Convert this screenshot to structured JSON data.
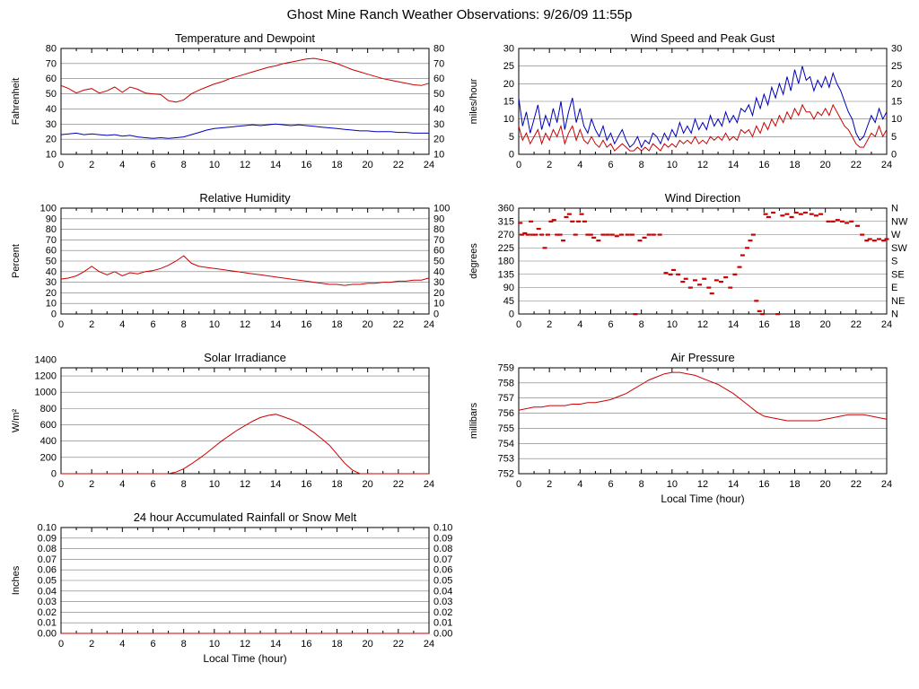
{
  "page": {
    "title": "Ghost Mine Ranch Weather Observations: 9/26/09 11:55p"
  },
  "colors": {
    "red": "#cc0000",
    "blue": "#0000bb",
    "grid": "#777777",
    "frame": "#000000"
  },
  "chart_data": [
    {
      "id": "temperature-dewpoint",
      "type": "line",
      "title": "Temperature and Dewpoint",
      "ylabel": "Fahrenheit",
      "xlabel": "",
      "xlim": [
        0,
        24
      ],
      "xtick_step": 2,
      "ylim": [
        10,
        80
      ],
      "ytick_step": 10,
      "y_decimals": 0,
      "right_labels": "mirror",
      "series": [
        {
          "name": "Temperature",
          "color": "#cc0000",
          "x_start": 0,
          "x_step": 0.5,
          "y": [
            55.5,
            53.5,
            50.5,
            52.5,
            53.5,
            50.5,
            52,
            54.5,
            51,
            54.5,
            53,
            50.5,
            50,
            49.5,
            45.5,
            44.5,
            46,
            50,
            52.5,
            54.5,
            56.5,
            58,
            60,
            61.5,
            63,
            64.5,
            66,
            67.5,
            68.5,
            70,
            71,
            72,
            73,
            73.5,
            72.5,
            71.5,
            70,
            68,
            66,
            64.5,
            63,
            61.5,
            60,
            59,
            58,
            57,
            56,
            55.5,
            57
          ]
        },
        {
          "name": "Dewpoint",
          "color": "#0000bb",
          "x_start": 0,
          "x_step": 0.5,
          "y": [
            23,
            23.5,
            24,
            23,
            23.5,
            23,
            22.5,
            23,
            22,
            22.5,
            21.5,
            21,
            20.5,
            21,
            20.5,
            21,
            21.5,
            23,
            24.5,
            26,
            27,
            27.5,
            28,
            28.5,
            29,
            29.5,
            29,
            29.5,
            30,
            29.5,
            29,
            29.5,
            29,
            28.5,
            28,
            27.5,
            27,
            26.5,
            26,
            25.5,
            25.5,
            25,
            25,
            25,
            24.5,
            24.5,
            24,
            24,
            24
          ]
        }
      ]
    },
    {
      "id": "wind-speed-gust",
      "type": "line",
      "title": "Wind Speed and Peak Gust",
      "ylabel": "miles/hour",
      "xlabel": "",
      "xlim": [
        0,
        24
      ],
      "xtick_step": 2,
      "ylim": [
        0,
        30
      ],
      "ytick_step": 5,
      "y_decimals": 0,
      "right_labels": "mirror",
      "series": [
        {
          "name": "Wind Speed",
          "color": "#cc0000",
          "x_start": 0,
          "x_step": 0.25,
          "y": [
            8,
            4,
            6,
            3,
            5,
            7,
            3,
            6,
            4,
            7,
            5,
            8,
            3,
            6,
            8,
            4,
            7,
            4,
            3,
            5,
            3,
            2,
            4,
            2,
            3,
            1,
            2,
            3,
            2,
            1,
            1,
            2,
            1,
            2,
            1,
            3,
            2,
            1,
            3,
            2,
            3,
            2,
            4,
            3,
            4,
            3,
            5,
            3,
            4,
            3,
            5,
            4,
            5,
            4,
            6,
            4,
            5,
            4,
            7,
            6,
            7,
            5,
            8,
            6,
            9,
            7,
            10,
            8,
            11,
            9,
            12,
            10,
            13,
            11,
            14,
            12,
            12,
            10,
            12,
            11,
            13,
            11,
            14,
            12,
            10,
            8,
            7,
            5,
            3,
            2,
            2,
            4,
            6,
            5,
            8,
            5,
            7
          ]
        },
        {
          "name": "Peak Gust",
          "color": "#0000bb",
          "x_start": 0,
          "x_step": 0.25,
          "y": [
            16,
            8,
            12,
            6,
            10,
            14,
            7,
            11,
            8,
            13,
            9,
            15,
            7,
            12,
            16,
            9,
            13,
            8,
            6,
            10,
            7,
            5,
            8,
            4,
            6,
            3,
            5,
            7,
            4,
            2,
            3,
            5,
            2,
            4,
            3,
            6,
            5,
            3,
            6,
            4,
            7,
            5,
            9,
            6,
            8,
            6,
            10,
            7,
            9,
            7,
            11,
            8,
            10,
            8,
            12,
            9,
            11,
            9,
            13,
            12,
            14,
            11,
            16,
            13,
            17,
            14,
            19,
            16,
            20,
            17,
            22,
            18,
            24,
            20,
            25,
            21,
            22,
            18,
            21,
            19,
            22,
            19,
            23,
            20,
            18,
            15,
            12,
            10,
            6,
            4,
            5,
            8,
            11,
            9,
            13,
            10,
            12
          ]
        }
      ]
    },
    {
      "id": "relative-humidity",
      "type": "line",
      "title": "Relative Humidity",
      "ylabel": "Percent",
      "xlabel": "",
      "xlim": [
        0,
        24
      ],
      "xtick_step": 2,
      "ylim": [
        0,
        100
      ],
      "ytick_step": 10,
      "y_decimals": 0,
      "right_labels": "mirror",
      "series": [
        {
          "name": "Relative Humidity",
          "color": "#cc0000",
          "x_start": 0,
          "x_step": 0.5,
          "y": [
            33,
            34,
            36,
            40,
            45,
            40,
            37,
            40,
            36,
            39,
            38,
            40,
            41,
            43,
            46,
            50,
            55,
            48,
            45,
            44,
            43,
            42,
            41,
            40,
            39,
            38,
            37,
            36,
            35,
            34,
            33,
            32,
            31,
            30,
            29,
            28,
            28,
            27,
            28,
            28,
            29,
            29,
            30,
            30,
            31,
            31,
            32,
            32,
            34
          ]
        }
      ]
    },
    {
      "id": "wind-direction",
      "type": "scatter",
      "title": "Wind Direction",
      "ylabel": "degrees",
      "xlabel": "",
      "xlim": [
        0,
        24
      ],
      "xtick_step": 2,
      "ylim": [
        0,
        360
      ],
      "ytick_step": 45,
      "y_decimals": 0,
      "right_labels": [
        "N",
        "NE",
        "E",
        "SE",
        "S",
        "SW",
        "W",
        "NW",
        "N"
      ],
      "series": [
        {
          "name": "Wind Direction",
          "color": "#cc0000",
          "points": [
            [
              0.1,
              310
            ],
            [
              0.2,
              270
            ],
            [
              0.4,
              275
            ],
            [
              0.6,
              270
            ],
            [
              0.8,
              315
            ],
            [
              0.9,
              270
            ],
            [
              1.1,
              270
            ],
            [
              1.3,
              290
            ],
            [
              1.5,
              270
            ],
            [
              1.7,
              225
            ],
            [
              1.9,
              270
            ],
            [
              2.1,
              315
            ],
            [
              2.3,
              320
            ],
            [
              2.5,
              270
            ],
            [
              2.7,
              270
            ],
            [
              2.9,
              250
            ],
            [
              3.1,
              330
            ],
            [
              3.3,
              340
            ],
            [
              3.5,
              315
            ],
            [
              3.7,
              270
            ],
            [
              3.9,
              315
            ],
            [
              4.1,
              340
            ],
            [
              4.3,
              315
            ],
            [
              4.5,
              270
            ],
            [
              4.7,
              270
            ],
            [
              4.9,
              260
            ],
            [
              5.2,
              250
            ],
            [
              5.5,
              270
            ],
            [
              5.8,
              270
            ],
            [
              6.1,
              270
            ],
            [
              6.4,
              265
            ],
            [
              6.7,
              270
            ],
            [
              7.1,
              270
            ],
            [
              7.4,
              270
            ],
            [
              7.6,
              0
            ],
            [
              7.9,
              250
            ],
            [
              8.2,
              260
            ],
            [
              8.5,
              270
            ],
            [
              8.8,
              270
            ],
            [
              9.2,
              270
            ],
            [
              9.6,
              140
            ],
            [
              9.9,
              135
            ],
            [
              10.1,
              150
            ],
            [
              10.4,
              135
            ],
            [
              10.7,
              110
            ],
            [
              10.9,
              120
            ],
            [
              11.2,
              90
            ],
            [
              11.5,
              115
            ],
            [
              11.8,
              100
            ],
            [
              12.1,
              120
            ],
            [
              12.4,
              90
            ],
            [
              12.6,
              70
            ],
            [
              12.9,
              115
            ],
            [
              13.2,
              110
            ],
            [
              13.5,
              125
            ],
            [
              13.8,
              90
            ],
            [
              14.1,
              135
            ],
            [
              14.4,
              160
            ],
            [
              14.6,
              200
            ],
            [
              14.9,
              225
            ],
            [
              15.1,
              250
            ],
            [
              15.3,
              270
            ],
            [
              15.5,
              45
            ],
            [
              15.7,
              10
            ],
            [
              15.9,
              0
            ],
            [
              16.1,
              340
            ],
            [
              16.3,
              330
            ],
            [
              16.6,
              345
            ],
            [
              16.9,
              0
            ],
            [
              17.2,
              335
            ],
            [
              17.5,
              340
            ],
            [
              17.8,
              330
            ],
            [
              18.1,
              345
            ],
            [
              18.4,
              340
            ],
            [
              18.7,
              345
            ],
            [
              19.1,
              340
            ],
            [
              19.4,
              335
            ],
            [
              19.7,
              340
            ],
            [
              20.2,
              315
            ],
            [
              20.5,
              315
            ],
            [
              20.8,
              320
            ],
            [
              21.1,
              315
            ],
            [
              21.4,
              310
            ],
            [
              21.7,
              315
            ],
            [
              22.1,
              300
            ],
            [
              22.4,
              270
            ],
            [
              22.7,
              250
            ],
            [
              22.9,
              255
            ],
            [
              23.2,
              250
            ],
            [
              23.5,
              255
            ],
            [
              23.8,
              250
            ],
            [
              24,
              255
            ]
          ]
        }
      ]
    },
    {
      "id": "solar-irradiance",
      "type": "line",
      "title": "Solar Irradiance",
      "ylabel": "W/m²",
      "xlabel": "",
      "xlim": [
        0,
        24
      ],
      "xtick_step": 2,
      "ylim": [
        0,
        1300
      ],
      "ytick_step": 200,
      "y_decimals": 0,
      "right_labels": null,
      "series": [
        {
          "name": "Solar Irradiance",
          "color": "#cc0000",
          "x_start": 0,
          "x_step": 0.5,
          "y": [
            0,
            0,
            0,
            0,
            0,
            0,
            0,
            0,
            0,
            0,
            0,
            0,
            0,
            0,
            0,
            20,
            60,
            120,
            185,
            255,
            330,
            405,
            470,
            535,
            590,
            645,
            690,
            715,
            730,
            700,
            665,
            625,
            570,
            505,
            430,
            350,
            240,
            130,
            45,
            0,
            0,
            0,
            0,
            0,
            0,
            0,
            0,
            0,
            0
          ]
        }
      ]
    },
    {
      "id": "air-pressure",
      "type": "line",
      "title": "Air Pressure",
      "ylabel": "millibars",
      "xlabel": "Local Time (hour)",
      "xlim": [
        0,
        24
      ],
      "xtick_step": 2,
      "ylim": [
        752,
        759
      ],
      "ytick_step": 1,
      "y_decimals": 0,
      "right_labels": null,
      "series": [
        {
          "name": "Air Pressure",
          "color": "#cc0000",
          "x_start": 0,
          "x_step": 0.5,
          "y": [
            756.2,
            756.3,
            756.4,
            756.4,
            756.5,
            756.5,
            756.5,
            756.6,
            756.6,
            756.7,
            756.7,
            756.8,
            756.9,
            757.1,
            757.3,
            757.6,
            757.9,
            758.2,
            758.4,
            758.6,
            758.7,
            758.7,
            758.6,
            758.5,
            758.3,
            758.1,
            757.9,
            757.6,
            757.3,
            756.9,
            756.5,
            756.1,
            755.8,
            755.7,
            755.6,
            755.5,
            755.5,
            755.5,
            755.5,
            755.5,
            755.6,
            755.7,
            755.8,
            755.9,
            755.9,
            755.9,
            755.8,
            755.7,
            755.6
          ]
        }
      ]
    },
    {
      "id": "rainfall",
      "type": "line",
      "title": "24 hour Accumulated Rainfall or Snow Melt",
      "ylabel": "Inches",
      "xlabel": "Local Time (hour)",
      "xlim": [
        0,
        24
      ],
      "xtick_step": 2,
      "ylim": [
        0,
        0.1
      ],
      "ytick_step": 0.01,
      "y_decimals": 2,
      "right_labels": "mirror",
      "series": [
        {
          "name": "Accumulated Rainfall",
          "color": "#cc0000",
          "x_start": 0,
          "x_step": 24,
          "y": [
            0,
            0
          ]
        }
      ]
    }
  ]
}
